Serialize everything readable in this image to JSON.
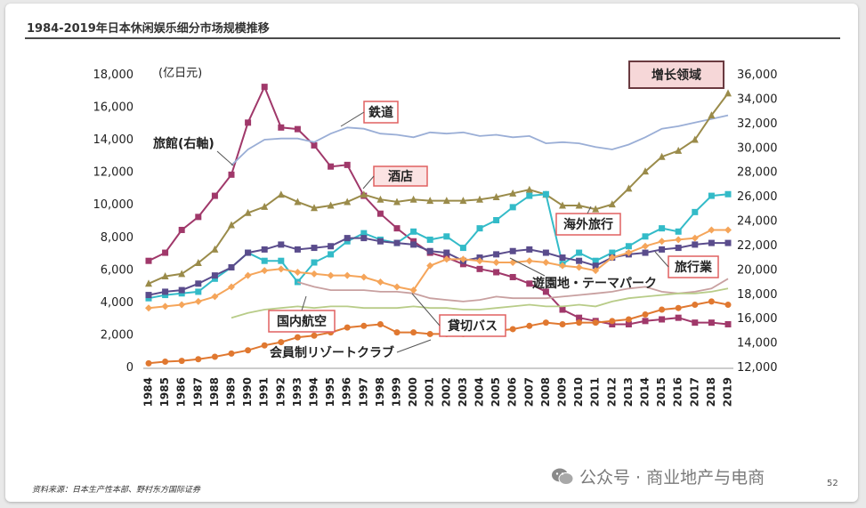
{
  "slide": {
    "title": "1984-2019年日本休闲娱乐细分市场规模推移",
    "source": "资料来源：日本生产性本部、野村东方国际证券",
    "watermark": "公众号 · 商业地产与电商",
    "page_number": "52"
  },
  "colors": {
    "rail": "#a0386a",
    "ryokan": "#9aaed6",
    "hotel": "#b05a4a",
    "overseas": "#33bbc8",
    "travel_agency": "#5a4c8c",
    "amusement": "#9a8b4a",
    "domestic_air": "#f5a55a",
    "bus": "#c8a0a0",
    "resort_club": "#b8cc88",
    "member": "#e07830"
  },
  "chart_data": {
    "type": "line",
    "x": [
      1984,
      1985,
      1986,
      1987,
      1988,
      1989,
      1990,
      1991,
      1992,
      1993,
      1994,
      1995,
      1996,
      1997,
      1998,
      1999,
      2000,
      2001,
      2002,
      2003,
      2004,
      2005,
      2006,
      2007,
      2008,
      2009,
      2010,
      2011,
      2012,
      2013,
      2014,
      2015,
      2016,
      2017,
      2018,
      2019
    ],
    "y_left": {
      "unit": "(亿日元)",
      "min": 0,
      "max": 18000,
      "ticks": [
        "0",
        "2,000",
        "4,000",
        "6,000",
        "8,000",
        "10,000",
        "12,000",
        "14,000",
        "16,000",
        "18,000"
      ]
    },
    "y_right": {
      "min": 12000,
      "max": 36000,
      "ticks": [
        "12,000",
        "14,000",
        "16,000",
        "18,000",
        "20,000",
        "22,000",
        "24,000",
        "26,000",
        "28,000",
        "30,000",
        "32,000",
        "34,000",
        "36,000"
      ]
    },
    "legend_box": "增长领域",
    "series": [
      {
        "key": "rail",
        "name": "鉄道",
        "axis": "left",
        "marker": "square",
        "color_key": "rail",
        "values": [
          6500,
          7000,
          8400,
          9200,
          10500,
          11800,
          15000,
          17200,
          14700,
          14600,
          13600,
          12300,
          12400,
          10500,
          9400,
          8500,
          7700,
          7000,
          6700,
          6300,
          6000,
          5800,
          5500,
          5100,
          4600,
          3500,
          3000,
          2800,
          2600,
          2600,
          2800,
          2900,
          3000,
          2700,
          2700,
          2600
        ]
      },
      {
        "key": "ryokan",
        "name": "旅館(右軸)",
        "axis": "right",
        "marker": "none",
        "color_key": "ryokan",
        "values": [
          null,
          null,
          null,
          null,
          null,
          28500,
          29800,
          30600,
          30700,
          30700,
          30400,
          31100,
          31600,
          31500,
          31100,
          31000,
          30800,
          31200,
          31100,
          31200,
          30900,
          31000,
          30800,
          30900,
          30300,
          30400,
          30300,
          30000,
          29800,
          30200,
          30800,
          31500,
          31700,
          32000,
          32300,
          32600
        ]
      },
      {
        "key": "hotel",
        "name": "酒店",
        "axis": "right",
        "marker": "triangle",
        "color_key": "amusement",
        "values": [
          18800,
          19400,
          19600,
          20500,
          21600,
          23600,
          24600,
          25100,
          26100,
          25500,
          25000,
          25200,
          25500,
          26100,
          25700,
          25500,
          25700,
          25600,
          25600,
          25600,
          25700,
          25900,
          26200,
          26500,
          26100,
          25200,
          25200,
          24900,
          25300,
          26600,
          28000,
          29200,
          29700,
          30600,
          32600,
          34400
        ]
      },
      {
        "key": "overseas",
        "name": "海外旅行",
        "axis": "left",
        "marker": "square",
        "color_key": "overseas",
        "values": [
          4200,
          4400,
          4500,
          4600,
          5400,
          6100,
          7000,
          6500,
          6500,
          5200,
          6400,
          6900,
          7700,
          8200,
          7800,
          7600,
          8300,
          7800,
          8000,
          7300,
          8500,
          9000,
          9800,
          10500,
          10600,
          6300,
          7000,
          6500,
          7000,
          7400,
          8000,
          8500,
          8300,
          9500,
          10500,
          10600
        ]
      },
      {
        "key": "travel_agency",
        "name": "旅行業",
        "axis": "left",
        "marker": "square",
        "color_key": "travel_agency",
        "values": [
          4400,
          4600,
          4700,
          5100,
          5600,
          6100,
          7000,
          7200,
          7500,
          7200,
          7300,
          7400,
          7900,
          7900,
          7700,
          7600,
          7500,
          7100,
          7000,
          6500,
          6700,
          6900,
          7100,
          7200,
          7000,
          6700,
          6500,
          6200,
          6700,
          6900,
          7000,
          7200,
          7300,
          7500,
          7600,
          7600
        ]
      },
      {
        "key": "amusement",
        "name": "遊園地・テーマパーク",
        "axis": "left",
        "marker": "none",
        "color_key": "bus",
        "values": [
          null,
          null,
          null,
          null,
          null,
          null,
          null,
          null,
          null,
          5200,
          4900,
          4700,
          4700,
          4700,
          4600,
          4600,
          4500,
          4200,
          4100,
          4000,
          4100,
          4300,
          4200,
          4200,
          4200,
          4300,
          4400,
          4500,
          4600,
          4800,
          4900,
          4600,
          4500,
          4600,
          4800,
          5400
        ]
      },
      {
        "key": "domestic_air",
        "name": "国内航空",
        "axis": "left",
        "marker": "diamond",
        "color_key": "domestic_air",
        "values": [
          3600,
          3700,
          3800,
          4000,
          4300,
          4900,
          5600,
          5900,
          6000,
          5800,
          5700,
          5600,
          5600,
          5500,
          5200,
          4900,
          4700,
          6200,
          6600,
          6600,
          6500,
          6400,
          6400,
          6500,
          6400,
          6200,
          6100,
          5900,
          6700,
          7000,
          7400,
          7700,
          7800,
          7900,
          8400,
          8400
        ]
      },
      {
        "key": "bus",
        "name": "貸切バス",
        "axis": "left",
        "marker": "none",
        "color_key": "resort_club",
        "values": [
          null,
          null,
          null,
          null,
          null,
          3000,
          3300,
          3500,
          3600,
          3700,
          3600,
          3700,
          3700,
          3600,
          3600,
          3600,
          3700,
          3600,
          3600,
          3500,
          3500,
          3600,
          3700,
          3800,
          3700,
          3700,
          3800,
          3700,
          4000,
          4200,
          4300,
          4400,
          4500,
          4500,
          4600,
          4800
        ]
      },
      {
        "key": "resort_club",
        "name": "会員制リゾートクラブ",
        "axis": "left",
        "marker": "circle",
        "color_key": "member",
        "values": [
          200,
          300,
          350,
          450,
          600,
          800,
          1000,
          1300,
          1500,
          1800,
          1900,
          2100,
          2400,
          2500,
          2600,
          2100,
          2100,
          2000,
          2000,
          2000,
          2100,
          2200,
          2300,
          2500,
          2700,
          2600,
          2700,
          2700,
          2800,
          2900,
          3200,
          3500,
          3600,
          3800,
          4000,
          3800
        ]
      }
    ],
    "labels": {
      "rail": "鉄道",
      "hotel": "酒店",
      "ryokan": "旅館(右軸)",
      "overseas": "海外旅行",
      "travel_agency": "旅行業",
      "amusement": "遊園地・テーマパーク",
      "domestic_air": "国内航空",
      "bus": "貸切バス",
      "resort_club": "会員制リゾートクラブ"
    }
  }
}
